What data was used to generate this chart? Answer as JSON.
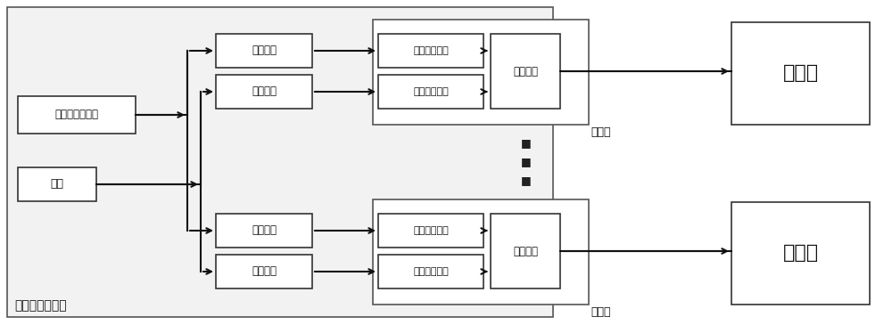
{
  "bg_color": "#ffffff",
  "box_face": "#ffffff",
  "box_edge": "#333333",
  "line_color": "#111111",
  "text_color": "#111111",
  "label_上位机控制系统": "上位机控制系统",
  "label_驱动信号发生器": "驱动信号发生器",
  "label_电源": "电源",
  "label_信号接口": "信号接口",
  "label_电源接口": "电源接口",
  "label_信号隔离单元": "信号隔离单元",
  "label_功率隔离单元": "功率隔离单元",
  "label_驱动单元": "驱动单元",
  "label_驱动器": "驱动器",
  "label_半导体": "半导体",
  "dots": "■\n■\n■"
}
